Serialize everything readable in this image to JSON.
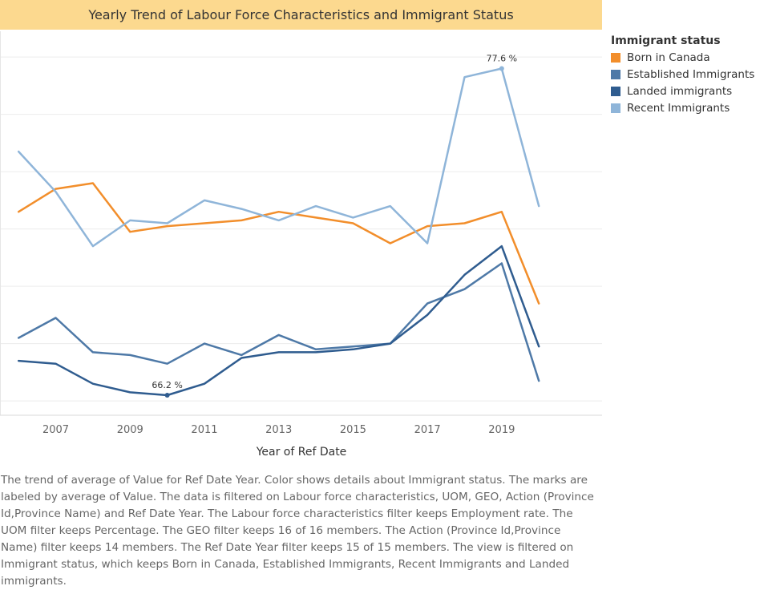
{
  "title": "Yearly Trend of Labour Force Characteristics and Immigrant Status",
  "legend_title": "Immigrant status",
  "caption": "The trend of average of Value for Ref Date Year.  Color shows details about Immigrant status.  The marks are labeled by average of Value. The data is filtered on Labour force characteristics, UOM, GEO, Action (Province Id,Province Name) and Ref Date Year. The Labour force characteristics filter keeps Employment rate. The UOM filter keeps Percentage. The GEO filter keeps 16 of 16 members. The Action (Province Id,Province Name) filter keeps 14 members. The Ref Date Year filter keeps 15 of 15 members. The view is filtered on Immigrant status, which keeps Born in Canada, Established Immigrants, Recent Immigrants and Landed immigrants.",
  "chart_data": {
    "type": "line",
    "title": "Yearly Trend of Labour Force Characteristics and Immigrant Status",
    "xlabel": "Year of Ref Date",
    "ylabel": "",
    "x": [
      2006,
      2007,
      2008,
      2009,
      2010,
      2011,
      2012,
      2013,
      2014,
      2015,
      2016,
      2017,
      2018,
      2019,
      2020
    ],
    "x_ticks": [
      2007,
      2009,
      2011,
      2013,
      2015,
      2017,
      2019
    ],
    "x_tick_labels": [
      "2007",
      "2009",
      "2011",
      "2013",
      "2015",
      "2017",
      "2019"
    ],
    "xlim": [
      2005.5,
      2021.7
    ],
    "ylim": [
      65.5,
      78.9
    ],
    "y_gridlines": [
      66.0,
      68.0,
      70.0,
      72.0,
      74.0,
      76.0,
      78.0
    ],
    "y_axis_labels_shown": false,
    "grid": true,
    "legend_position": "right",
    "series": [
      {
        "name": "Born in Canada",
        "color": "#f28e2b",
        "values": [
          72.6,
          73.4,
          73.6,
          71.9,
          72.1,
          72.2,
          72.3,
          72.6,
          72.4,
          72.2,
          71.5,
          72.1,
          72.2,
          72.6,
          69.4
        ]
      },
      {
        "name": "Established Immigrants",
        "color": "#4e79a7",
        "values": [
          68.2,
          68.9,
          67.7,
          67.6,
          67.3,
          68.0,
          67.6,
          68.3,
          67.8,
          67.9,
          68.0,
          69.4,
          69.9,
          70.8,
          66.7
        ]
      },
      {
        "name": "Landed immigrants",
        "color": "#2f5c8f",
        "values": [
          67.4,
          67.3,
          66.6,
          66.3,
          66.2,
          66.6,
          67.5,
          67.7,
          67.7,
          67.8,
          68.0,
          69.0,
          70.4,
          71.4,
          67.9
        ]
      },
      {
        "name": "Recent Immigrants",
        "color": "#8fb5d9",
        "values": [
          74.7,
          73.3,
          71.4,
          72.3,
          72.2,
          73.0,
          72.7,
          72.3,
          72.8,
          72.4,
          72.8,
          71.5,
          77.3,
          77.6,
          72.8
        ]
      }
    ],
    "annotations": [
      {
        "series": "Recent Immigrants",
        "x": 2019,
        "y": 77.6,
        "label": "77.6 %"
      },
      {
        "series": "Landed immigrants",
        "x": 2010,
        "y": 66.2,
        "label": "66.2 %"
      }
    ]
  }
}
